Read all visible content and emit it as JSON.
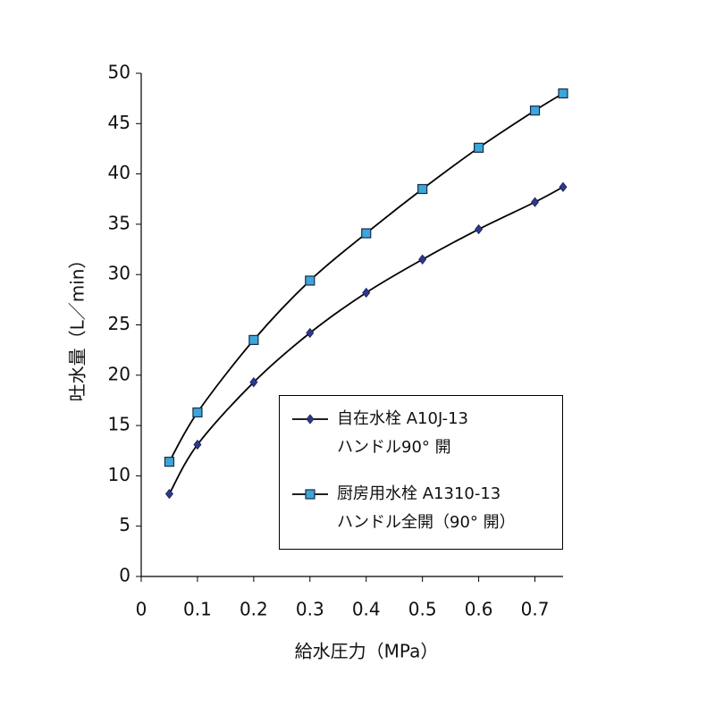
{
  "chart_data": {
    "type": "line",
    "x_label": "給水圧力（MPa）",
    "y_label": "吐水量（L／min）",
    "x": [
      0.05,
      0.1,
      0.2,
      0.3,
      0.4,
      0.5,
      0.6,
      0.7,
      0.75
    ],
    "series": [
      {
        "name": "自在水栓 A10J-13\nハンドル90° 開",
        "color": "#2b3a8c",
        "marker": "diamond",
        "values": [
          8.2,
          13.1,
          19.3,
          24.2,
          28.2,
          31.5,
          34.5,
          37.2,
          38.7
        ]
      },
      {
        "name": "厨房用水栓 A1310-13\nハンドル全開（90° 開）",
        "color": "#3aa7d8",
        "marker": "square",
        "values": [
          11.4,
          16.3,
          23.5,
          29.4,
          34.1,
          38.5,
          42.6,
          46.3,
          48.0
        ]
      }
    ],
    "xlim": [
      0,
      0.75
    ],
    "xticks": [
      0,
      0.1,
      0.2,
      0.3,
      0.4,
      0.5,
      0.6,
      0.7
    ],
    "ylim": [
      0,
      50
    ],
    "yticks": [
      0,
      5,
      10,
      15,
      20,
      25,
      30,
      35,
      40,
      45,
      50
    ],
    "grid": false
  }
}
